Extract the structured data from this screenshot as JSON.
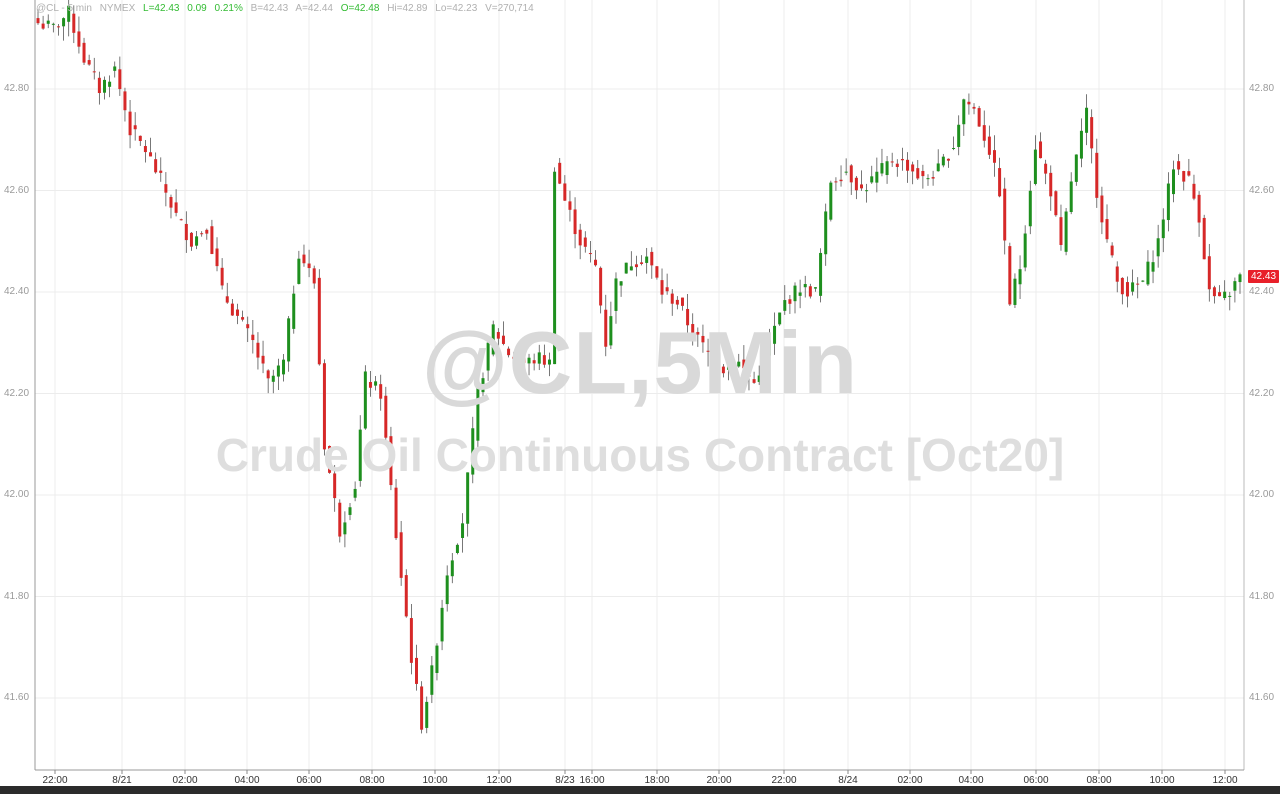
{
  "header": {
    "symbol": "@CL - 5 min",
    "exchange": "NYMEX",
    "last": "L=42.43",
    "change": "0.09",
    "change_pct": "0.21%",
    "bid": "B=42.43",
    "ask": "A=42.44",
    "open": "O=42.48",
    "high": "Hi=42.89",
    "low": "Lo=42.23",
    "volume": "V=270,714"
  },
  "watermark": {
    "line1": "@CL,5Min",
    "line2": "Crude Oil Continuous Contract [Oct20]"
  },
  "last_price_tag": "42.43",
  "colors": {
    "up": "#1e8f1e",
    "down": "#d62828",
    "background": "#ffffff",
    "grid": "#e6e6e6",
    "last_tag": "#e8202a"
  },
  "chart_data": {
    "type": "candlestick",
    "y_axis_ticks": [
      "41.60",
      "41.80",
      "42.00",
      "42.20",
      "42.40",
      "42.60",
      "42.80"
    ],
    "ylim": [
      41.48,
      43.0
    ],
    "x_axis_ticks": [
      "22:00",
      "8/21",
      "02:00",
      "04:00",
      "06:00",
      "08:00",
      "10:00",
      "12:00",
      "8/23",
      "16:00",
      "18:00",
      "20:00",
      "22:00",
      "8/24",
      "02:00",
      "04:00",
      "06:00",
      "08:00",
      "10:00",
      "12:00"
    ],
    "close_path": [
      [
        0,
        42.93
      ],
      [
        3,
        42.92
      ],
      [
        6,
        42.95
      ],
      [
        9,
        42.86
      ],
      [
        12,
        42.8
      ],
      [
        15,
        42.84
      ],
      [
        18,
        42.72
      ],
      [
        21,
        42.68
      ],
      [
        24,
        42.62
      ],
      [
        27,
        42.55
      ],
      [
        30,
        42.5
      ],
      [
        33,
        42.53
      ],
      [
        36,
        42.4
      ],
      [
        39,
        42.35
      ],
      [
        42,
        42.3
      ],
      [
        45,
        42.22
      ],
      [
        48,
        42.26
      ],
      [
        51,
        42.48
      ],
      [
        54,
        42.42
      ],
      [
        56,
        42.1
      ],
      [
        59,
        41.93
      ],
      [
        62,
        42.02
      ],
      [
        64,
        42.23
      ],
      [
        67,
        42.2
      ],
      [
        70,
        41.92
      ],
      [
        73,
        41.68
      ],
      [
        75,
        41.55
      ],
      [
        77,
        41.65
      ],
      [
        80,
        41.85
      ],
      [
        83,
        41.95
      ],
      [
        86,
        42.2
      ],
      [
        89,
        42.33
      ],
      [
        92,
        42.28
      ],
      [
        95,
        42.26
      ],
      [
        98,
        42.27
      ],
      [
        100,
        42.26
      ],
      [
        101,
        42.65
      ],
      [
        103,
        42.58
      ],
      [
        106,
        42.5
      ],
      [
        109,
        42.45
      ],
      [
        111,
        42.3
      ],
      [
        113,
        42.42
      ],
      [
        116,
        42.46
      ],
      [
        119,
        42.47
      ],
      [
        122,
        42.4
      ],
      [
        125,
        42.38
      ],
      [
        128,
        42.32
      ],
      [
        131,
        42.28
      ],
      [
        134,
        42.25
      ],
      [
        137,
        42.26
      ],
      [
        140,
        42.22
      ],
      [
        143,
        42.3
      ],
      [
        146,
        42.38
      ],
      [
        149,
        42.41
      ],
      [
        152,
        42.4
      ],
      [
        155,
        42.62
      ],
      [
        158,
        42.64
      ],
      [
        161,
        42.6
      ],
      [
        164,
        42.63
      ],
      [
        167,
        42.66
      ],
      [
        170,
        42.65
      ],
      [
        173,
        42.62
      ],
      [
        176,
        42.64
      ],
      [
        179,
        42.69
      ],
      [
        181,
        42.78
      ],
      [
        183,
        42.76
      ],
      [
        186,
        42.68
      ],
      [
        188,
        42.6
      ],
      [
        190,
        42.38
      ],
      [
        192,
        42.45
      ],
      [
        195,
        42.69
      ],
      [
        198,
        42.6
      ],
      [
        200,
        42.48
      ],
      [
        202,
        42.62
      ],
      [
        205,
        42.75
      ],
      [
        207,
        42.6
      ],
      [
        209,
        42.5
      ],
      [
        211,
        42.42
      ],
      [
        213,
        42.4
      ],
      [
        216,
        42.42
      ],
      [
        219,
        42.5
      ],
      [
        222,
        42.65
      ],
      [
        225,
        42.62
      ],
      [
        227,
        42.55
      ],
      [
        229,
        42.4
      ],
      [
        231,
        42.38
      ],
      [
        233,
        42.4
      ],
      [
        235,
        42.43
      ]
    ],
    "total_bars": 236
  }
}
